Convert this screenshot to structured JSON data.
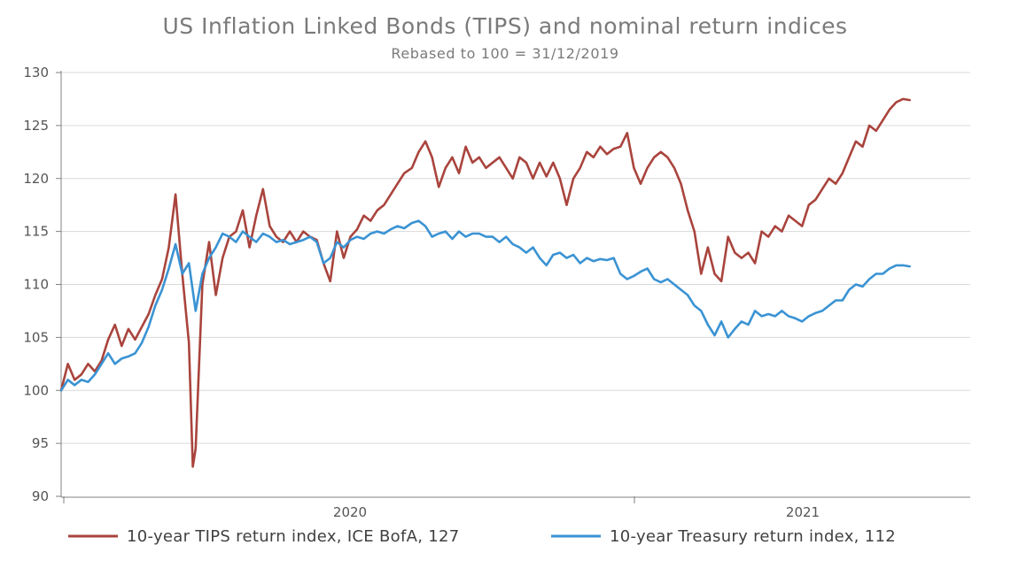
{
  "chart_data": {
    "type": "line",
    "title": "US Inflation Linked Bonds (TIPS) and nominal return indices",
    "subtitle": "Rebased to 100 = 31/12/2019",
    "xlabel": "",
    "ylabel": "",
    "ylim": [
      90,
      130
    ],
    "yticks": [
      90,
      95,
      100,
      105,
      110,
      115,
      120,
      125,
      130
    ],
    "xlim": [
      "2019-01-01",
      "2021-08-04"
    ],
    "xticks": [
      {
        "date": "2020-01-01",
        "label": "2020"
      },
      {
        "date": "2021-01-01",
        "label": "2021"
      }
    ],
    "grid": true,
    "legend": "bottom",
    "series": [
      {
        "name": "10-year TIPS return index, ICE BofA, 127",
        "color": "#a9443d",
        "points": [
          [
            "2019-01-01",
            100.0
          ],
          [
            "2019-01-08",
            102.5
          ],
          [
            "2019-01-15",
            101.0
          ],
          [
            "2019-01-22",
            101.5
          ],
          [
            "2019-01-29",
            102.5
          ],
          [
            "2019-02-05",
            101.8
          ],
          [
            "2019-02-12",
            102.8
          ],
          [
            "2019-02-19",
            104.8
          ],
          [
            "2019-02-26",
            106.2
          ],
          [
            "2019-03-05",
            104.2
          ],
          [
            "2019-03-12",
            105.8
          ],
          [
            "2019-03-19",
            104.8
          ],
          [
            "2019-03-26",
            106.0
          ],
          [
            "2019-04-02",
            107.2
          ],
          [
            "2019-04-09",
            109.0
          ],
          [
            "2019-04-16",
            110.5
          ],
          [
            "2019-04-23",
            113.5
          ],
          [
            "2019-04-30",
            118.5
          ],
          [
            "2019-05-07",
            111.0
          ],
          [
            "2019-05-14",
            104.5
          ],
          [
            "2019-05-18",
            92.8
          ],
          [
            "2019-05-21",
            94.5
          ],
          [
            "2019-05-28",
            110.0
          ],
          [
            "2019-06-04",
            114.0
          ],
          [
            "2019-06-11",
            109.0
          ],
          [
            "2019-06-18",
            112.5
          ],
          [
            "2019-06-25",
            114.5
          ],
          [
            "2019-07-02",
            115.0
          ],
          [
            "2019-07-09",
            117.0
          ],
          [
            "2019-07-16",
            113.5
          ],
          [
            "2019-07-23",
            116.5
          ],
          [
            "2019-07-30",
            119.0
          ],
          [
            "2019-08-06",
            115.5
          ],
          [
            "2019-08-13",
            114.5
          ],
          [
            "2019-08-20",
            114.0
          ],
          [
            "2019-08-27",
            115.0
          ],
          [
            "2019-09-03",
            114.0
          ],
          [
            "2019-09-10",
            115.0
          ],
          [
            "2019-09-17",
            114.5
          ],
          [
            "2019-09-24",
            114.2
          ],
          [
            "2019-10-01",
            112.0
          ],
          [
            "2019-10-08",
            110.3
          ],
          [
            "2019-10-15",
            115.0
          ],
          [
            "2019-10-22",
            112.5
          ],
          [
            "2019-10-29",
            114.5
          ],
          [
            "2019-11-05",
            115.2
          ],
          [
            "2019-11-12",
            116.5
          ],
          [
            "2019-11-19",
            116.0
          ],
          [
            "2019-11-26",
            117.0
          ],
          [
            "2019-12-03",
            117.5
          ],
          [
            "2019-12-10",
            118.5
          ],
          [
            "2019-12-17",
            119.5
          ],
          [
            "2019-12-24",
            120.5
          ],
          [
            "2020-01-01",
            121.0
          ],
          [
            "2020-01-08",
            122.5
          ],
          [
            "2020-01-15",
            123.5
          ],
          [
            "2020-01-22",
            122.0
          ],
          [
            "2020-01-29",
            119.2
          ],
          [
            "2020-02-05",
            121.0
          ],
          [
            "2020-02-12",
            122.0
          ],
          [
            "2020-02-19",
            120.5
          ],
          [
            "2020-02-26",
            123.0
          ],
          [
            "2020-03-04",
            121.5
          ],
          [
            "2020-03-11",
            122.0
          ],
          [
            "2020-03-18",
            121.0
          ],
          [
            "2020-03-25",
            121.5
          ],
          [
            "2020-04-01",
            122.0
          ],
          [
            "2020-04-08",
            121.0
          ],
          [
            "2020-04-15",
            120.0
          ],
          [
            "2020-04-22",
            122.0
          ],
          [
            "2020-04-29",
            121.5
          ],
          [
            "2020-05-06",
            120.0
          ],
          [
            "2020-05-13",
            121.5
          ],
          [
            "2020-05-20",
            120.2
          ],
          [
            "2020-05-27",
            121.5
          ],
          [
            "2020-06-03",
            120.0
          ],
          [
            "2020-06-10",
            117.5
          ],
          [
            "2020-06-17",
            120.0
          ],
          [
            "2020-06-24",
            121.0
          ],
          [
            "2020-07-01",
            122.5
          ],
          [
            "2020-07-08",
            122.0
          ],
          [
            "2020-07-15",
            123.0
          ],
          [
            "2020-07-22",
            122.3
          ],
          [
            "2020-07-29",
            122.8
          ],
          [
            "2020-08-05",
            123.0
          ],
          [
            "2020-08-12",
            124.3
          ],
          [
            "2020-08-19",
            121.0
          ],
          [
            "2020-08-26",
            119.5
          ],
          [
            "2020-09-02",
            121.0
          ],
          [
            "2020-09-09",
            122.0
          ],
          [
            "2020-09-16",
            122.5
          ],
          [
            "2020-09-23",
            122.0
          ],
          [
            "2020-09-30",
            121.0
          ],
          [
            "2020-10-07",
            119.5
          ],
          [
            "2020-10-14",
            117.0
          ],
          [
            "2020-10-21",
            115.0
          ],
          [
            "2020-10-28",
            111.0
          ],
          [
            "2020-11-04",
            113.5
          ],
          [
            "2020-11-11",
            111.0
          ],
          [
            "2020-11-18",
            110.3
          ],
          [
            "2020-11-25",
            114.5
          ],
          [
            "2020-12-02",
            113.0
          ],
          [
            "2020-12-09",
            112.5
          ],
          [
            "2020-12-16",
            113.0
          ],
          [
            "2020-12-23",
            112.0
          ],
          [
            "2020-12-30",
            115.0
          ],
          [
            "2021-01-06",
            114.5
          ],
          [
            "2021-01-13",
            115.5
          ],
          [
            "2021-01-20",
            115.0
          ],
          [
            "2021-01-27",
            116.5
          ],
          [
            "2021-02-03",
            116.0
          ],
          [
            "2021-02-10",
            115.5
          ],
          [
            "2021-02-17",
            117.5
          ],
          [
            "2021-02-24",
            118.0
          ],
          [
            "2021-03-03",
            119.0
          ],
          [
            "2021-03-10",
            120.0
          ],
          [
            "2021-03-17",
            119.5
          ],
          [
            "2021-03-24",
            120.5
          ],
          [
            "2021-03-31",
            122.0
          ],
          [
            "2021-04-07",
            123.5
          ],
          [
            "2021-04-14",
            123.0
          ],
          [
            "2021-04-21",
            125.0
          ],
          [
            "2021-04-28",
            124.5
          ],
          [
            "2021-05-05",
            125.5
          ],
          [
            "2021-05-12",
            126.5
          ],
          [
            "2021-05-19",
            127.2
          ],
          [
            "2021-05-26",
            127.5
          ],
          [
            "2021-06-02",
            127.4
          ]
        ]
      },
      {
        "name": "10-year Treasury return index, 112",
        "color": "#3a93d3",
        "points": [
          [
            "2019-01-01",
            100.0
          ],
          [
            "2019-01-08",
            101.0
          ],
          [
            "2019-01-15",
            100.5
          ],
          [
            "2019-01-22",
            101.0
          ],
          [
            "2019-01-29",
            100.8
          ],
          [
            "2019-02-05",
            101.5
          ],
          [
            "2019-02-12",
            102.5
          ],
          [
            "2019-02-19",
            103.5
          ],
          [
            "2019-02-26",
            102.5
          ],
          [
            "2019-03-05",
            103.0
          ],
          [
            "2019-03-12",
            103.2
          ],
          [
            "2019-03-19",
            103.5
          ],
          [
            "2019-03-26",
            104.5
          ],
          [
            "2019-04-02",
            106.0
          ],
          [
            "2019-04-09",
            108.0
          ],
          [
            "2019-04-16",
            109.5
          ],
          [
            "2019-04-23",
            111.5
          ],
          [
            "2019-04-30",
            113.8
          ],
          [
            "2019-05-07",
            111.0
          ],
          [
            "2019-05-14",
            112.0
          ],
          [
            "2019-05-21",
            107.5
          ],
          [
            "2019-05-28",
            111.0
          ],
          [
            "2019-06-04",
            112.5
          ],
          [
            "2019-06-11",
            113.5
          ],
          [
            "2019-06-18",
            114.8
          ],
          [
            "2019-06-25",
            114.5
          ],
          [
            "2019-07-02",
            114.0
          ],
          [
            "2019-07-09",
            115.0
          ],
          [
            "2019-07-16",
            114.5
          ],
          [
            "2019-07-23",
            114.0
          ],
          [
            "2019-07-30",
            114.8
          ],
          [
            "2019-08-06",
            114.5
          ],
          [
            "2019-08-13",
            114.0
          ],
          [
            "2019-08-20",
            114.2
          ],
          [
            "2019-08-27",
            113.8
          ],
          [
            "2019-09-03",
            114.0
          ],
          [
            "2019-09-10",
            114.2
          ],
          [
            "2019-09-17",
            114.5
          ],
          [
            "2019-09-24",
            114.0
          ],
          [
            "2019-10-01",
            112.0
          ],
          [
            "2019-10-08",
            112.5
          ],
          [
            "2019-10-15",
            114.0
          ],
          [
            "2019-10-22",
            113.5
          ],
          [
            "2019-10-29",
            114.2
          ],
          [
            "2019-11-05",
            114.5
          ],
          [
            "2019-11-12",
            114.3
          ],
          [
            "2019-11-19",
            114.8
          ],
          [
            "2019-11-26",
            115.0
          ],
          [
            "2019-12-03",
            114.8
          ],
          [
            "2019-12-10",
            115.2
          ],
          [
            "2019-12-17",
            115.5
          ],
          [
            "2019-12-24",
            115.3
          ],
          [
            "2020-01-01",
            115.8
          ],
          [
            "2020-01-08",
            116.0
          ],
          [
            "2020-01-15",
            115.5
          ],
          [
            "2020-01-22",
            114.5
          ],
          [
            "2020-01-29",
            114.8
          ],
          [
            "2020-02-05",
            115.0
          ],
          [
            "2020-02-12",
            114.3
          ],
          [
            "2020-02-19",
            115.0
          ],
          [
            "2020-02-26",
            114.5
          ],
          [
            "2020-03-04",
            114.8
          ],
          [
            "2020-03-11",
            114.8
          ],
          [
            "2020-03-18",
            114.5
          ],
          [
            "2020-03-25",
            114.5
          ],
          [
            "2020-04-01",
            114.0
          ],
          [
            "2020-04-08",
            114.5
          ],
          [
            "2020-04-15",
            113.8
          ],
          [
            "2020-04-22",
            113.5
          ],
          [
            "2020-04-29",
            113.0
          ],
          [
            "2020-05-06",
            113.5
          ],
          [
            "2020-05-13",
            112.5
          ],
          [
            "2020-05-20",
            111.8
          ],
          [
            "2020-05-27",
            112.8
          ],
          [
            "2020-06-03",
            113.0
          ],
          [
            "2020-06-10",
            112.5
          ],
          [
            "2020-06-17",
            112.8
          ],
          [
            "2020-06-24",
            112.0
          ],
          [
            "2020-07-01",
            112.5
          ],
          [
            "2020-07-08",
            112.2
          ],
          [
            "2020-07-15",
            112.4
          ],
          [
            "2020-07-22",
            112.3
          ],
          [
            "2020-07-29",
            112.5
          ],
          [
            "2020-08-05",
            111.0
          ],
          [
            "2020-08-12",
            110.5
          ],
          [
            "2020-08-19",
            110.8
          ],
          [
            "2020-08-26",
            111.2
          ],
          [
            "2020-09-02",
            111.5
          ],
          [
            "2020-09-09",
            110.5
          ],
          [
            "2020-09-16",
            110.2
          ],
          [
            "2020-09-23",
            110.5
          ],
          [
            "2020-09-30",
            110.0
          ],
          [
            "2020-10-07",
            109.5
          ],
          [
            "2020-10-14",
            109.0
          ],
          [
            "2020-10-21",
            108.0
          ],
          [
            "2020-10-28",
            107.5
          ],
          [
            "2020-11-04",
            106.2
          ],
          [
            "2020-11-11",
            105.2
          ],
          [
            "2020-11-18",
            106.5
          ],
          [
            "2020-11-25",
            105.0
          ],
          [
            "2020-12-02",
            105.8
          ],
          [
            "2020-12-09",
            106.5
          ],
          [
            "2020-12-16",
            106.2
          ],
          [
            "2020-12-23",
            107.5
          ],
          [
            "2020-12-30",
            107.0
          ],
          [
            "2021-01-06",
            107.2
          ],
          [
            "2021-01-13",
            107.0
          ],
          [
            "2021-01-20",
            107.5
          ],
          [
            "2021-01-27",
            107.0
          ],
          [
            "2021-02-03",
            106.8
          ],
          [
            "2021-02-10",
            106.5
          ],
          [
            "2021-02-17",
            107.0
          ],
          [
            "2021-02-24",
            107.3
          ],
          [
            "2021-03-03",
            107.5
          ],
          [
            "2021-03-10",
            108.0
          ],
          [
            "2021-03-17",
            108.5
          ],
          [
            "2021-03-24",
            108.5
          ],
          [
            "2021-03-31",
            109.5
          ],
          [
            "2021-04-07",
            110.0
          ],
          [
            "2021-04-14",
            109.8
          ],
          [
            "2021-04-21",
            110.5
          ],
          [
            "2021-04-28",
            111.0
          ],
          [
            "2021-05-05",
            111.0
          ],
          [
            "2021-05-12",
            111.5
          ],
          [
            "2021-05-19",
            111.8
          ],
          [
            "2021-05-26",
            111.8
          ],
          [
            "2021-06-02",
            111.7
          ]
        ]
      }
    ]
  }
}
